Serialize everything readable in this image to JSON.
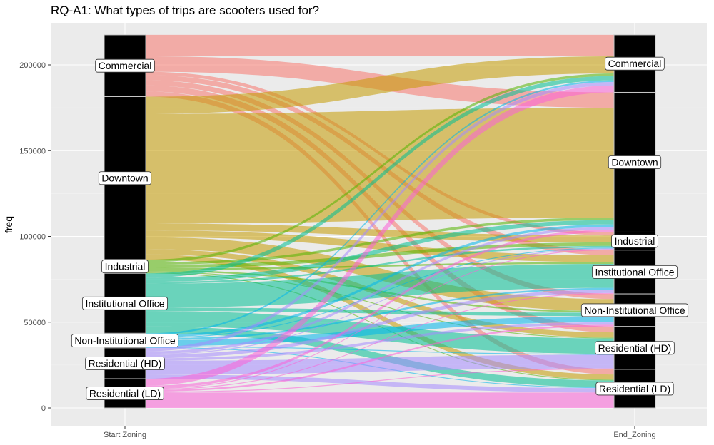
{
  "chart_data": {
    "type": "alluvial",
    "title": "RQ-A1: What types of trips are scooters used for?",
    "ylabel": "freq",
    "ylim": [
      0,
      215000
    ],
    "yticks": [
      0,
      50000,
      100000,
      150000,
      200000
    ],
    "axes": [
      "Start Zoning",
      "End_Zoning"
    ],
    "categories": [
      "Commercial",
      "Downtown",
      "Industrial",
      "Institutional Office",
      "Non-Institutional Office",
      "Residential (HD)",
      "Residential (LD)"
    ],
    "colors": {
      "Commercial": "#F8766D",
      "Downtown": "#C49A00",
      "Industrial": "#53B400",
      "Institutional Office": "#00C094",
      "Non-Institutional Office": "#00B6EB",
      "Residential (HD)": "#A58AFF",
      "Residential (LD)": "#FB61D7"
    },
    "flows": [
      {
        "from": "Commercial",
        "to": "Commercial",
        "value": 12500
      },
      {
        "from": "Commercial",
        "to": "Downtown",
        "value": 9000
      },
      {
        "from": "Commercial",
        "to": "Industrial",
        "value": 2000
      },
      {
        "from": "Commercial",
        "to": "Institutional Office",
        "value": 3000
      },
      {
        "from": "Commercial",
        "to": "Non-Institutional Office",
        "value": 3000
      },
      {
        "from": "Commercial",
        "to": "Residential (HD)",
        "value": 3500
      },
      {
        "from": "Commercial",
        "to": "Residential (LD)",
        "value": 3000
      },
      {
        "from": "Downtown",
        "to": "Commercial",
        "value": 10000
      },
      {
        "from": "Downtown",
        "to": "Downtown",
        "value": 64000
      },
      {
        "from": "Downtown",
        "to": "Industrial",
        "value": 4000
      },
      {
        "from": "Downtown",
        "to": "Institutional Office",
        "value": 4000
      },
      {
        "from": "Downtown",
        "to": "Non-Institutional Office",
        "value": 7000
      },
      {
        "from": "Downtown",
        "to": "Residential (HD)",
        "value": 3000
      },
      {
        "from": "Downtown",
        "to": "Residential (LD)",
        "value": 3000
      },
      {
        "from": "Industrial",
        "to": "Commercial",
        "value": 1500
      },
      {
        "from": "Industrial",
        "to": "Downtown",
        "value": 1500
      },
      {
        "from": "Industrial",
        "to": "Industrial",
        "value": 2000
      },
      {
        "from": "Industrial",
        "to": "Institutional Office",
        "value": 1000
      },
      {
        "from": "Industrial",
        "to": "Non-Institutional Office",
        "value": 1000
      },
      {
        "from": "Industrial",
        "to": "Residential (HD)",
        "value": 500
      },
      {
        "from": "Industrial",
        "to": "Residential (LD)",
        "value": 500
      },
      {
        "from": "Institutional Office",
        "to": "Commercial",
        "value": 2500
      },
      {
        "from": "Institutional Office",
        "to": "Downtown",
        "value": 2500
      },
      {
        "from": "Institutional Office",
        "to": "Industrial",
        "value": 1000
      },
      {
        "from": "Institutional Office",
        "to": "Institutional Office",
        "value": 14000
      },
      {
        "from": "Institutional Office",
        "to": "Non-Institutional Office",
        "value": 2000
      },
      {
        "from": "Institutional Office",
        "to": "Residential (HD)",
        "value": 9000
      },
      {
        "from": "Institutional Office",
        "to": "Residential (LD)",
        "value": 4000
      },
      {
        "from": "Non-Institutional Office",
        "to": "Commercial",
        "value": 1000
      },
      {
        "from": "Non-Institutional Office",
        "to": "Downtown",
        "value": 1500
      },
      {
        "from": "Non-Institutional Office",
        "to": "Industrial",
        "value": 500
      },
      {
        "from": "Non-Institutional Office",
        "to": "Institutional Office",
        "value": 1000
      },
      {
        "from": "Non-Institutional Office",
        "to": "Non-Institutional Office",
        "value": 3500
      },
      {
        "from": "Non-Institutional Office",
        "to": "Residential (HD)",
        "value": 500
      },
      {
        "from": "Non-Institutional Office",
        "to": "Residential (LD)",
        "value": 500
      },
      {
        "from": "Residential (HD)",
        "to": "Commercial",
        "value": 2000
      },
      {
        "from": "Residential (HD)",
        "to": "Downtown",
        "value": 1500
      },
      {
        "from": "Residential (HD)",
        "to": "Industrial",
        "value": 500
      },
      {
        "from": "Residential (HD)",
        "to": "Institutional Office",
        "value": 2000
      },
      {
        "from": "Residential (HD)",
        "to": "Non-Institutional Office",
        "value": 1500
      },
      {
        "from": "Residential (HD)",
        "to": "Residential (HD)",
        "value": 8000
      },
      {
        "from": "Residential (HD)",
        "to": "Residential (LD)",
        "value": 2500
      },
      {
        "from": "Residential (LD)",
        "to": "Commercial",
        "value": 4000
      },
      {
        "from": "Residential (LD)",
        "to": "Downtown",
        "value": 1500
      },
      {
        "from": "Residential (LD)",
        "to": "Industrial",
        "value": 500
      },
      {
        "from": "Residential (LD)",
        "to": "Institutional Office",
        "value": 500
      },
      {
        "from": "Residential (LD)",
        "to": "Non-Institutional Office",
        "value": 1000
      },
      {
        "from": "Residential (LD)",
        "to": "Residential (HD)",
        "value": 500
      },
      {
        "from": "Residential (LD)",
        "to": "Residential (LD)",
        "value": 9000
      }
    ]
  }
}
